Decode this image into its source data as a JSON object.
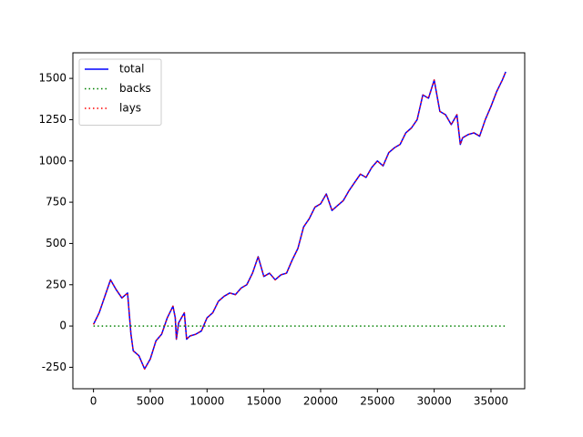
{
  "chart_data": {
    "type": "line",
    "x": [
      0,
      500,
      1000,
      1500,
      2000,
      2500,
      3000,
      3300,
      3500,
      4000,
      4500,
      5000,
      5500,
      6000,
      6500,
      7000,
      7200,
      7300,
      7500,
      8000,
      8200,
      8500,
      9000,
      9500,
      10000,
      10500,
      11000,
      11500,
      12000,
      12500,
      13000,
      13500,
      14000,
      14500,
      15000,
      15500,
      16000,
      16500,
      17000,
      17500,
      18000,
      18500,
      19000,
      19500,
      20000,
      20500,
      21000,
      21500,
      22000,
      22500,
      23000,
      23500,
      24000,
      24500,
      25000,
      25500,
      26000,
      26500,
      27000,
      27500,
      28000,
      28500,
      29000,
      29500,
      30000,
      30500,
      31000,
      31500,
      32000,
      32300,
      32500,
      33000,
      33500,
      34000,
      34500,
      35000,
      35500,
      36000,
      36300
    ],
    "series": [
      {
        "name": "total",
        "color": "#0000ff",
        "style": "solid",
        "values": [
          10,
          80,
          180,
          280,
          220,
          170,
          200,
          -50,
          -150,
          -180,
          -260,
          -200,
          -90,
          -50,
          50,
          120,
          50,
          -80,
          20,
          80,
          -80,
          -60,
          -50,
          -30,
          50,
          80,
          150,
          180,
          200,
          190,
          230,
          250,
          320,
          420,
          300,
          320,
          280,
          310,
          320,
          400,
          470,
          600,
          650,
          720,
          740,
          800,
          700,
          730,
          760,
          820,
          870,
          920,
          900,
          960,
          1000,
          970,
          1050,
          1080,
          1100,
          1170,
          1200,
          1250,
          1400,
          1380,
          1490,
          1300,
          1280,
          1220,
          1280,
          1100,
          1140,
          1160,
          1170,
          1150,
          1250,
          1330,
          1420,
          1490,
          1540
        ]
      },
      {
        "name": "backs",
        "color": "#008000",
        "style": "dotted",
        "values": [
          0,
          0,
          0,
          0,
          0,
          0,
          0,
          0,
          0,
          0,
          0,
          0,
          0,
          0,
          0,
          0,
          0,
          0,
          0,
          0,
          0,
          0,
          0,
          0,
          0,
          0,
          0,
          0,
          0,
          0,
          0,
          0,
          0,
          0,
          0,
          0,
          0,
          0,
          0,
          0,
          0,
          0,
          0,
          0,
          0,
          0,
          0,
          0,
          0,
          0,
          0,
          0,
          0,
          0,
          0,
          0,
          0,
          0,
          0,
          0,
          0,
          0,
          0,
          0,
          0,
          0,
          0,
          0,
          0,
          0,
          0,
          0,
          0,
          0,
          0,
          0,
          0,
          0,
          0
        ]
      },
      {
        "name": "lays",
        "color": "#ff0000",
        "style": "dotted",
        "values": [
          10,
          80,
          180,
          280,
          220,
          170,
          200,
          -50,
          -150,
          -180,
          -260,
          -200,
          -90,
          -50,
          50,
          120,
          50,
          -80,
          20,
          80,
          -80,
          -60,
          -50,
          -30,
          50,
          80,
          150,
          180,
          200,
          190,
          230,
          250,
          320,
          420,
          300,
          320,
          280,
          310,
          320,
          400,
          470,
          600,
          650,
          720,
          740,
          800,
          700,
          730,
          760,
          820,
          870,
          920,
          900,
          960,
          1000,
          970,
          1050,
          1080,
          1100,
          1170,
          1200,
          1250,
          1400,
          1380,
          1490,
          1300,
          1280,
          1220,
          1280,
          1100,
          1140,
          1160,
          1170,
          1150,
          1250,
          1330,
          1420,
          1490,
          1540
        ]
      }
    ],
    "xlim": [
      -1815,
      37970
    ],
    "ylim": [
      -380,
      1655
    ],
    "xticks": [
      0,
      5000,
      10000,
      15000,
      20000,
      25000,
      30000,
      35000
    ],
    "yticks": [
      -250,
      0,
      250,
      500,
      750,
      1000,
      1250,
      1500
    ],
    "grid": false,
    "legend": "upper left"
  }
}
